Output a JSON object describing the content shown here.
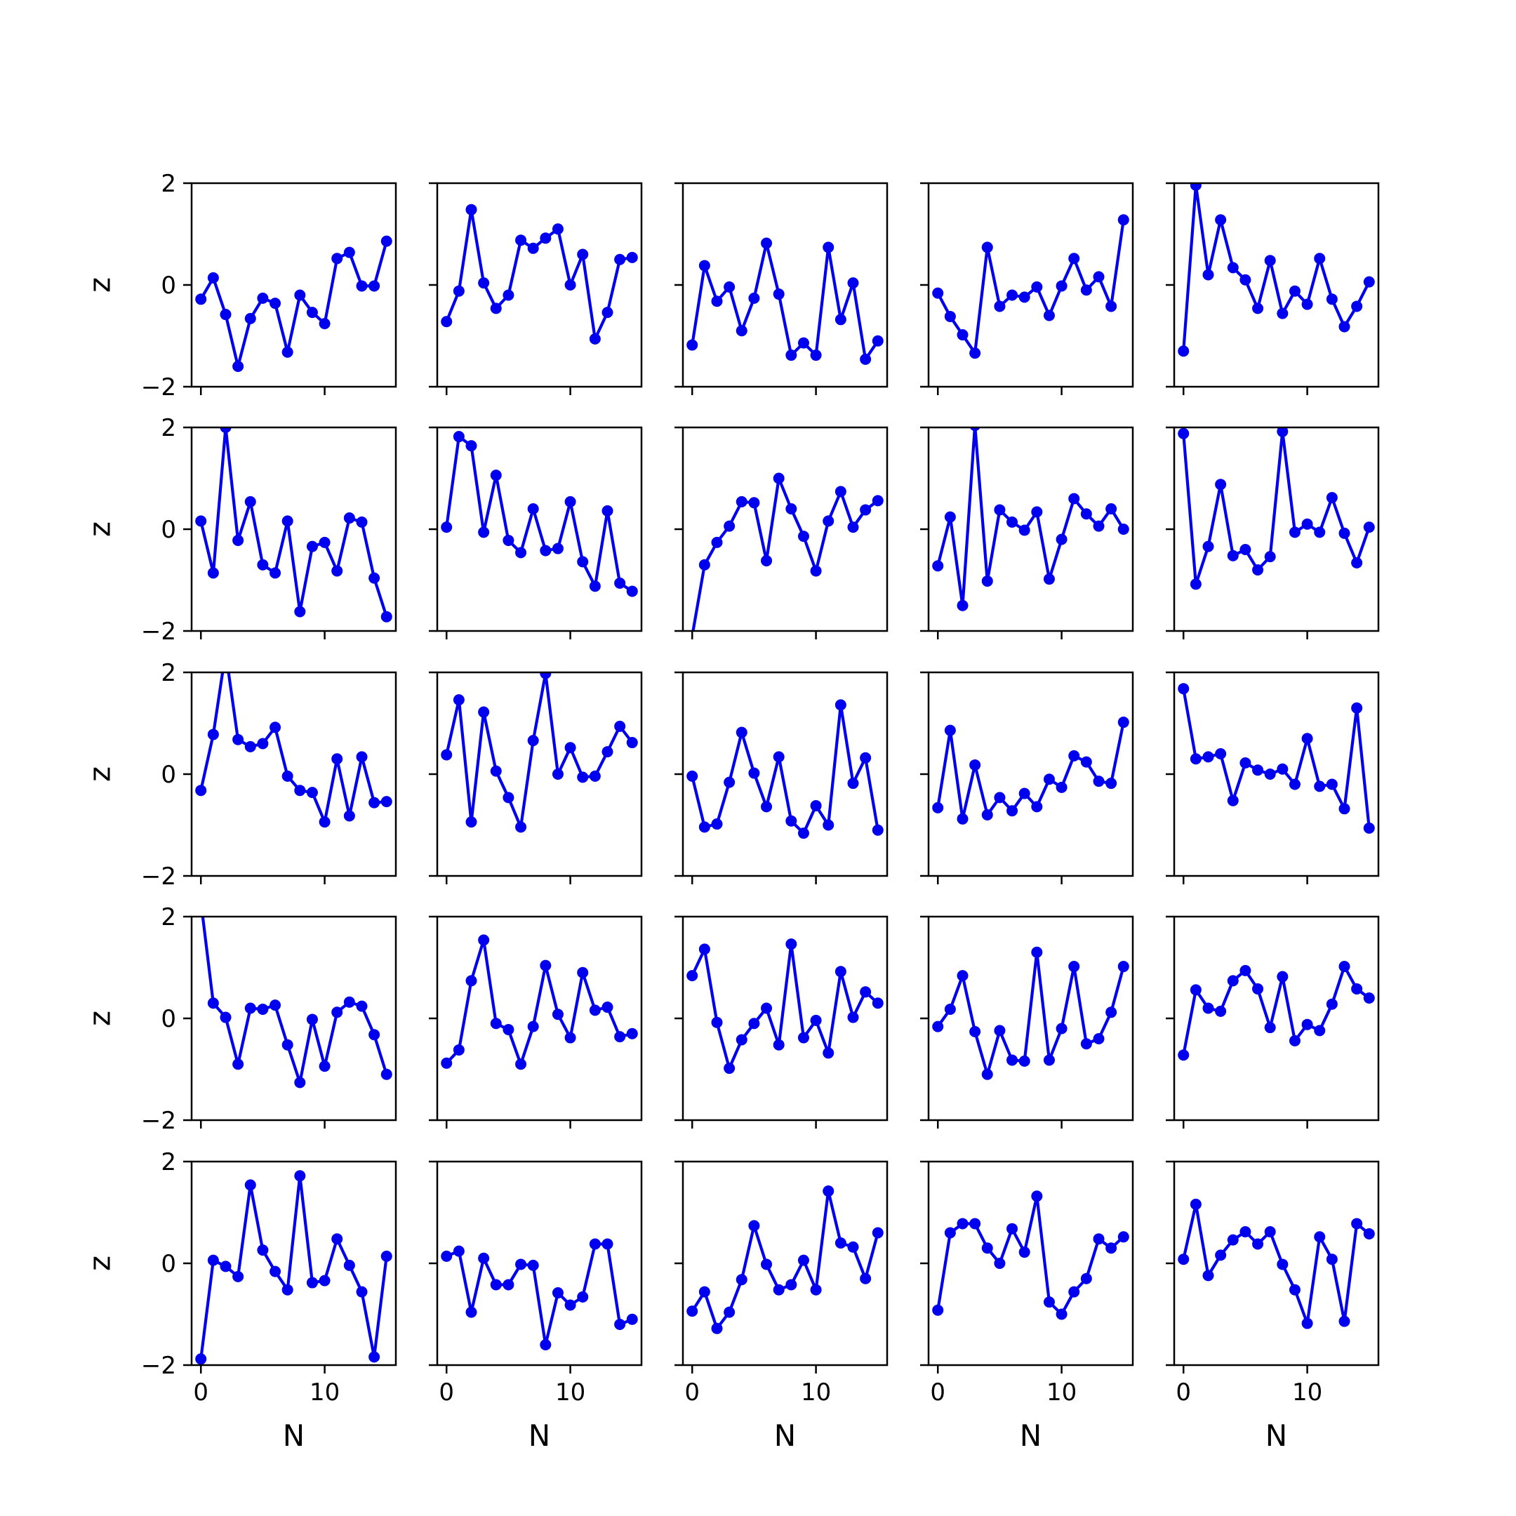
{
  "chart_data": {
    "type": "line",
    "grid": false,
    "rows": 5,
    "cols": 5,
    "xlim": [
      -0.75,
      15.75
    ],
    "ylim": [
      -2,
      2
    ],
    "x_ticks": [
      0,
      10
    ],
    "y_ticks": [
      -2,
      0,
      2
    ],
    "xlabel": "N",
    "ylabel": "z",
    "line_color": "#0000ee",
    "x": [
      0,
      1,
      2,
      3,
      4,
      5,
      6,
      7,
      8,
      9,
      10,
      11,
      12,
      13,
      14,
      15
    ],
    "panels": [
      [
        -0.28,
        0.14,
        -0.58,
        -1.6,
        -0.66,
        -0.26,
        -0.36,
        -1.32,
        -0.2,
        -0.54,
        -0.76,
        0.52,
        0.64,
        -0.02,
        -0.02,
        0.86
      ],
      [
        -0.72,
        -0.12,
        1.48,
        0.04,
        -0.46,
        -0.2,
        0.88,
        0.72,
        0.92,
        1.1,
        0.0,
        0.6,
        -1.06,
        -0.54,
        0.5,
        0.54
      ],
      [
        -1.18,
        0.38,
        -0.32,
        -0.04,
        -0.9,
        -0.26,
        0.82,
        -0.18,
        -1.38,
        -1.14,
        -1.38,
        0.74,
        -0.68,
        0.04,
        -1.46,
        -1.1
      ],
      [
        -0.16,
        -0.62,
        -0.98,
        -1.34,
        0.74,
        -0.42,
        -0.2,
        -0.24,
        -0.04,
        -0.6,
        -0.02,
        0.52,
        -0.1,
        0.16,
        -0.42,
        1.28
      ],
      [
        -1.3,
        1.96,
        0.2,
        1.28,
        0.34,
        0.1,
        -0.46,
        0.48,
        -0.56,
        -0.12,
        -0.38,
        0.52,
        -0.28,
        -0.82,
        -0.42,
        0.06
      ],
      [
        0.16,
        -0.86,
        2.0,
        -0.22,
        0.54,
        -0.7,
        -0.86,
        0.16,
        -1.62,
        -0.34,
        -0.26,
        -0.82,
        0.22,
        0.14,
        -0.96,
        -1.72
      ],
      [
        0.04,
        1.82,
        1.64,
        -0.06,
        1.06,
        -0.22,
        -0.46,
        0.4,
        -0.42,
        -0.38,
        0.54,
        -0.64,
        -1.12,
        0.36,
        -1.06,
        -1.22
      ],
      [
        -2.1,
        -0.7,
        -0.26,
        0.06,
        0.54,
        0.52,
        -0.62,
        1.0,
        0.4,
        -0.14,
        -0.82,
        0.16,
        0.74,
        0.04,
        0.38,
        0.56
      ],
      [
        -0.72,
        0.24,
        -1.5,
        2.04,
        -1.02,
        0.38,
        0.14,
        -0.02,
        0.34,
        -0.98,
        -0.2,
        0.6,
        0.3,
        0.06,
        0.4,
        0.0
      ],
      [
        1.88,
        -1.08,
        -0.34,
        0.88,
        -0.52,
        -0.4,
        -0.8,
        -0.54,
        1.92,
        -0.06,
        0.1,
        -0.06,
        0.62,
        -0.08,
        -0.66,
        0.04
      ],
      [
        -0.32,
        0.78,
        2.4,
        0.68,
        0.54,
        0.6,
        0.92,
        -0.04,
        -0.32,
        -0.36,
        -0.94,
        0.3,
        -0.82,
        0.34,
        -0.56,
        -0.54
      ],
      [
        0.38,
        1.46,
        -0.94,
        1.22,
        0.06,
        -0.46,
        -1.04,
        0.66,
        1.98,
        0.0,
        0.52,
        -0.06,
        -0.04,
        0.44,
        0.94,
        0.62
      ],
      [
        -0.04,
        -1.04,
        -0.98,
        -0.16,
        0.82,
        0.02,
        -0.64,
        0.34,
        -0.92,
        -1.16,
        -0.62,
        -1.0,
        1.36,
        -0.18,
        0.32,
        -1.1
      ],
      [
        -0.66,
        0.86,
        -0.88,
        0.18,
        -0.8,
        -0.46,
        -0.72,
        -0.38,
        -0.64,
        -0.1,
        -0.26,
        0.36,
        0.24,
        -0.14,
        -0.18,
        1.02
      ],
      [
        1.68,
        0.3,
        0.34,
        0.4,
        -0.52,
        0.22,
        0.08,
        0.0,
        0.1,
        -0.2,
        0.7,
        -0.24,
        -0.2,
        -0.68,
        1.3,
        -1.06
      ],
      [
        2.3,
        0.3,
        0.02,
        -0.9,
        0.2,
        0.18,
        0.26,
        -0.52,
        -1.26,
        -0.02,
        -0.94,
        0.12,
        0.32,
        0.24,
        -0.32,
        -1.1
      ],
      [
        -0.88,
        -0.62,
        0.74,
        1.54,
        -0.1,
        -0.22,
        -0.9,
        -0.16,
        1.04,
        0.08,
        -0.38,
        0.9,
        0.16,
        0.22,
        -0.36,
        -0.3
      ],
      [
        0.84,
        1.36,
        -0.08,
        -0.98,
        -0.42,
        -0.1,
        0.2,
        -0.52,
        1.46,
        -0.38,
        -0.04,
        -0.68,
        0.92,
        0.02,
        0.52,
        0.3
      ],
      [
        -0.16,
        0.18,
        0.84,
        -0.26,
        -1.1,
        -0.24,
        -0.82,
        -0.84,
        1.3,
        -0.82,
        -0.2,
        1.02,
        -0.5,
        -0.4,
        0.12,
        1.02
      ],
      [
        -0.72,
        0.56,
        0.2,
        0.14,
        0.74,
        0.94,
        0.58,
        -0.18,
        0.82,
        -0.44,
        -0.12,
        -0.24,
        0.28,
        1.02,
        0.58,
        0.4
      ],
      [
        -1.88,
        0.06,
        -0.06,
        -0.26,
        1.54,
        0.26,
        -0.16,
        -0.52,
        1.72,
        -0.38,
        -0.34,
        0.48,
        -0.04,
        -0.56,
        -1.84,
        0.14
      ],
      [
        0.14,
        0.24,
        -0.96,
        0.1,
        -0.42,
        -0.42,
        -0.02,
        -0.04,
        -1.6,
        -0.58,
        -0.82,
        -0.66,
        0.38,
        0.38,
        -1.2,
        -1.1
      ],
      [
        -0.94,
        -0.56,
        -1.28,
        -0.96,
        -0.32,
        0.74,
        -0.02,
        -0.52,
        -0.42,
        0.06,
        -0.52,
        1.42,
        0.4,
        0.32,
        -0.3,
        0.6
      ],
      [
        -0.92,
        0.6,
        0.78,
        0.78,
        0.3,
        0.0,
        0.68,
        0.22,
        1.32,
        -0.76,
        -1.0,
        -0.56,
        -0.3,
        0.48,
        0.3,
        0.52
      ],
      [
        0.08,
        1.16,
        -0.24,
        0.16,
        0.46,
        0.62,
        0.38,
        0.62,
        -0.02,
        -0.52,
        -1.18,
        0.52,
        0.08,
        -1.14,
        0.78,
        0.58
      ]
    ]
  }
}
